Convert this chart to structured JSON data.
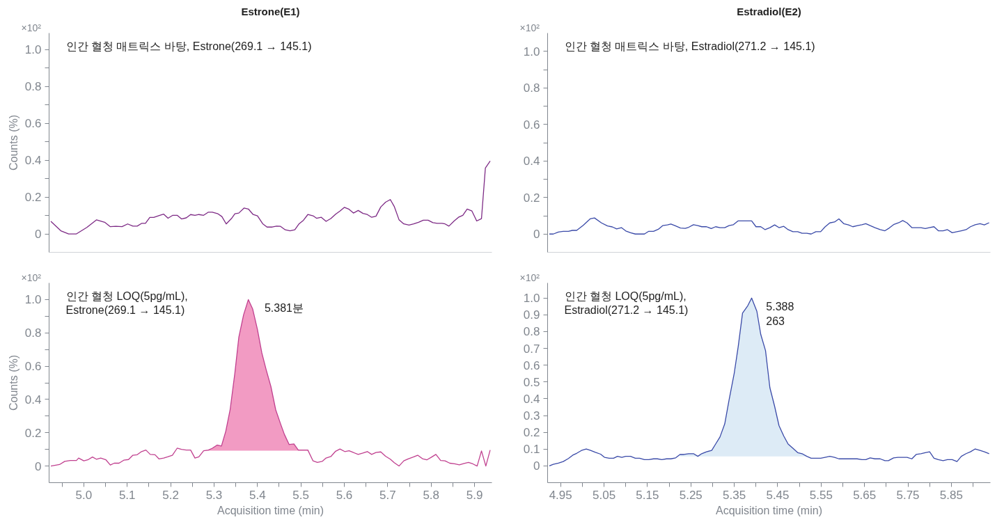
{
  "chart_data": [
    {
      "type": "line",
      "title": "Estrone(E1)",
      "ylabel": "Counts (%)",
      "xlim": [
        4.92,
        5.94
      ],
      "ylim": [
        -0.1,
        1.09
      ],
      "tick_labels": "y",
      "grid": false,
      "yticks": [
        0,
        {
          "value": 0.1,
          "label": null
        },
        0.2,
        {
          "value": 0.3,
          "label": null
        },
        0.4,
        {
          "value": 0.5,
          "label": null
        },
        0.6,
        {
          "value": 0.7,
          "label": null
        },
        0.8,
        {
          "value": 0.9,
          "label": null
        },
        {
          "value": 1.0,
          "label": "1.0"
        }
      ],
      "annotations": [
        "×10²",
        "인간 혈청 매트릭스 바탕, Estrone(269.1 → 145.1)"
      ],
      "series": [
        {
          "color": "#7d2a85",
          "x": [
            4.924,
            4.947,
            4.965,
            4.983,
            5.007,
            5.029,
            5.048,
            5.061,
            5.074,
            5.088,
            5.101,
            5.113,
            5.123,
            5.133,
            5.142,
            5.152,
            5.161,
            5.175,
            5.184,
            5.194,
            5.205,
            5.215,
            5.225,
            5.236,
            5.246,
            5.256,
            5.265,
            5.276,
            5.287,
            5.296,
            5.309,
            5.318,
            5.328,
            5.34,
            5.348,
            5.357,
            5.369,
            5.379,
            5.39,
            5.4,
            5.412,
            5.422,
            5.434,
            5.444,
            5.453,
            5.464,
            5.475,
            5.486,
            5.496,
            5.506,
            5.516,
            5.528,
            5.536,
            5.547,
            5.558,
            5.569,
            5.58,
            5.59,
            5.6,
            5.61,
            5.621,
            5.632,
            5.643,
            5.653,
            5.663,
            5.673,
            5.684,
            5.695,
            5.706,
            5.715,
            5.726,
            5.737,
            5.749,
            5.76,
            5.771,
            5.782,
            5.793,
            5.804,
            5.814,
            5.825,
            5.832,
            5.841,
            5.853,
            5.863,
            5.873,
            5.883,
            5.894,
            5.905,
            5.916,
            5.925,
            5.936
          ],
          "values": [
            0.068,
            0.017,
            0,
            0,
            0.035,
            0.076,
            0.063,
            0.039,
            0.041,
            0.039,
            0.054,
            0.042,
            0.042,
            0.057,
            0.057,
            0.089,
            0.089,
            0.101,
            0.107,
            0.085,
            0.101,
            0.101,
            0.081,
            0.087,
            0.105,
            0.101,
            0.105,
            0.101,
            0.118,
            0.118,
            0.109,
            0.094,
            0.054,
            0.083,
            0.109,
            0.113,
            0.14,
            0.135,
            0.105,
            0.098,
            0.055,
            0.037,
            0.037,
            0.042,
            0.041,
            0.022,
            0.017,
            0.022,
            0.055,
            0.074,
            0.105,
            0.098,
            0.085,
            0.09,
            0.068,
            0.083,
            0.107,
            0.124,
            0.144,
            0.135,
            0.113,
            0.127,
            0.111,
            0.105,
            0.09,
            0.096,
            0.146,
            0.172,
            0.186,
            0.149,
            0.077,
            0.054,
            0.048,
            0.054,
            0.063,
            0.074,
            0.074,
            0.061,
            0.057,
            0.057,
            0.054,
            0.042,
            0.07,
            0.09,
            0.101,
            0.135,
            0.124,
            0.07,
            0.083,
            0.358,
            0.395
          ]
        }
      ]
    },
    {
      "type": "line",
      "title": "Estradiol(E2)",
      "xlim": [
        4.92,
        5.94
      ],
      "ylim": [
        -0.1,
        1.1
      ],
      "tick_labels": "y",
      "grid": false,
      "yticks": [
        0,
        {
          "value": 0.1,
          "label": null
        },
        0.2,
        {
          "value": 0.3,
          "label": null
        },
        0.4,
        {
          "value": 0.5,
          "label": null
        },
        0.6,
        {
          "value": 0.7,
          "label": null
        },
        0.8,
        {
          "value": 0.9,
          "label": null
        },
        {
          "value": 1.0,
          "label": "1.0"
        }
      ],
      "annotations": [
        "×10²",
        "인간 혈청 매트릭스 바탕, Estradiol(271.2 → 145.1)"
      ],
      "series": [
        {
          "color": "#3a4aa8",
          "x": [
            4.924,
            4.933,
            4.945,
            4.956,
            4.968,
            4.977,
            4.987,
            5.002,
            5.018,
            5.028,
            5.044,
            5.058,
            5.069,
            5.079,
            5.09,
            5.1,
            5.111,
            5.122,
            5.132,
            5.143,
            5.153,
            5.164,
            5.175,
            5.185,
            5.196,
            5.204,
            5.215,
            5.226,
            5.237,
            5.245,
            5.256,
            5.266,
            5.275,
            5.286,
            5.297,
            5.307,
            5.317,
            5.328,
            5.338,
            5.348,
            5.359,
            5.371,
            5.381,
            5.39,
            5.4,
            5.411,
            5.421,
            5.432,
            5.443,
            5.453,
            5.464,
            5.474,
            5.485,
            5.496,
            5.506,
            5.517,
            5.527,
            5.538,
            5.549,
            5.559,
            5.57,
            5.581,
            5.591,
            5.602,
            5.613,
            5.623,
            5.634,
            5.644,
            5.653,
            5.663,
            5.674,
            5.686,
            5.697,
            5.707,
            5.718,
            5.729,
            5.738,
            5.748,
            5.759,
            5.769,
            5.78,
            5.79,
            5.799,
            5.81,
            5.82,
            5.831,
            5.841,
            5.852,
            5.863,
            5.873,
            5.884,
            5.894,
            5.905,
            5.916,
            5.926,
            5.937
          ],
          "values": [
            0,
            0,
            0.011,
            0.015,
            0.015,
            0.02,
            0.02,
            0.048,
            0.083,
            0.088,
            0.061,
            0.044,
            0.039,
            0.028,
            0.035,
            0.017,
            0.007,
            0,
            0,
            0,
            0.015,
            0.015,
            0.026,
            0.046,
            0.05,
            0.055,
            0.044,
            0.033,
            0.031,
            0.037,
            0.051,
            0.046,
            0.04,
            0.04,
            0.03,
            0.04,
            0.035,
            0.035,
            0.046,
            0.051,
            0.072,
            0.072,
            0.072,
            0.072,
            0.04,
            0.04,
            0.024,
            0.035,
            0.05,
            0.035,
            0.042,
            0.024,
            0.013,
            0.013,
            0.004,
            0.004,
            0,
            0.013,
            0.013,
            0.039,
            0.061,
            0.066,
            0.083,
            0.057,
            0.05,
            0.04,
            0.046,
            0.051,
            0.057,
            0.046,
            0.035,
            0.024,
            0.018,
            0.033,
            0.053,
            0.062,
            0.074,
            0.061,
            0.035,
            0.035,
            0.035,
            0.03,
            0.035,
            0.04,
            0.018,
            0.018,
            0.024,
            0.007,
            0.013,
            0.018,
            0.024,
            0.04,
            0.051,
            0.057,
            0.05,
            0.062
          ]
        }
      ]
    },
    {
      "type": "line",
      "ylabel": "Counts (%)",
      "xlabel": "Acquisition time (min)",
      "xlim": [
        4.92,
        5.94
      ],
      "ylim": [
        -0.1,
        1.1
      ],
      "grid": false,
      "xticks": [
        {
          "value": 4.95,
          "label": null
        },
        {
          "value": 5.0,
          "label": "5.0"
        },
        {
          "value": 5.05,
          "label": null
        },
        5.1,
        {
          "value": 5.15,
          "label": null
        },
        5.2,
        {
          "value": 5.25,
          "label": null
        },
        5.3,
        {
          "value": 5.35,
          "label": null
        },
        5.4,
        {
          "value": 5.45,
          "label": null
        },
        5.5,
        {
          "value": 5.55,
          "label": null
        },
        5.6,
        {
          "value": 5.65,
          "label": null
        },
        5.7,
        {
          "value": 5.75,
          "label": null
        },
        5.8,
        {
          "value": 5.85,
          "label": null
        },
        5.9
      ],
      "yticks": [
        0,
        {
          "value": 0.1,
          "label": null
        },
        0.2,
        {
          "value": 0.3,
          "label": null
        },
        0.4,
        {
          "value": 0.5,
          "label": null
        },
        0.6,
        {
          "value": 0.7,
          "label": null
        },
        0.8,
        {
          "value": 0.9,
          "label": null
        },
        {
          "value": 1.0,
          "label": "1.0"
        }
      ],
      "annotations": [
        "×10²",
        "인간 혈청 LOQ(5pg/mL),\nEstrone(269.1 → 145.1)",
        {
          "text": "5.381분",
          "x": 5.381,
          "y": 1.0
        }
      ],
      "series": [
        {
          "type": "area",
          "color": "#f29bc3",
          "x": [
            5.276,
            5.287,
            5.296,
            5.307,
            5.317,
            5.327,
            5.337,
            5.348,
            5.357,
            5.368,
            5.379,
            5.389,
            5.4,
            5.41,
            5.42,
            5.431,
            5.442,
            5.453,
            5.462,
            5.473,
            5.484,
            5.494,
            5.506,
            5.516
          ],
          "values": [
            0.092,
            0.096,
            0.107,
            0.126,
            0.12,
            0.209,
            0.338,
            0.56,
            0.773,
            0.908,
            1.0,
            0.943,
            0.819,
            0.68,
            0.579,
            0.477,
            0.338,
            0.255,
            0.19,
            0.129,
            0.133,
            0.096,
            0.096,
            0.096
          ]
        },
        {
          "color": "#c0408f",
          "x": [
            4.924,
            4.944,
            4.956,
            4.969,
            4.983,
            4.988,
            5.0,
            5.009,
            5.02,
            5.029,
            5.039,
            5.051,
            5.061,
            5.07,
            5.081,
            5.092,
            5.103,
            5.113,
            5.123,
            5.133,
            5.143,
            5.153,
            5.164,
            5.173,
            5.184,
            5.193,
            5.204,
            5.215,
            5.225,
            5.236,
            5.246,
            5.256,
            5.265,
            5.276,
            5.287,
            5.296,
            5.307,
            5.317,
            5.327,
            5.337,
            5.348,
            5.357,
            5.368,
            5.379,
            5.389,
            5.4,
            5.41,
            5.42,
            5.431,
            5.442,
            5.453,
            5.462,
            5.473,
            5.484,
            5.494,
            5.506,
            5.516,
            5.528,
            5.538,
            5.549,
            5.558,
            5.569,
            5.58,
            5.59,
            5.601,
            5.611,
            5.621,
            5.632,
            5.643,
            5.653,
            5.663,
            5.673,
            5.684,
            5.695,
            5.706,
            5.715,
            5.726,
            5.737,
            5.747,
            5.759,
            5.769,
            5.78,
            5.79,
            5.8,
            5.811,
            5.822,
            5.832,
            5.843,
            5.854,
            5.865,
            5.876,
            5.886,
            5.896,
            5.906,
            5.916,
            5.926,
            5.936
          ],
          "values": [
            0,
            0.009,
            0.028,
            0.033,
            0.033,
            0.048,
            0.031,
            0.037,
            0.054,
            0.041,
            0.048,
            0.037,
            0.006,
            0.017,
            0.017,
            0.035,
            0.039,
            0.065,
            0.068,
            0.087,
            0.096,
            0.07,
            0.068,
            0.043,
            0.048,
            0.055,
            0.065,
            0.107,
            0.1,
            0.096,
            0.096,
            0.048,
            0.055,
            0.092,
            0.096,
            0.107,
            0.126,
            0.12,
            0.209,
            0.338,
            0.56,
            0.773,
            0.908,
            1.0,
            0.943,
            0.819,
            0.68,
            0.579,
            0.477,
            0.338,
            0.255,
            0.19,
            0.129,
            0.133,
            0.096,
            0.096,
            0.096,
            0.031,
            0.022,
            0.028,
            0.048,
            0.057,
            0.089,
            0.102,
            0.087,
            0.092,
            0.081,
            0.07,
            0.078,
            0.087,
            0.07,
            0.081,
            0.085,
            0.059,
            0.041,
            0.02,
            0,
            0.031,
            0.043,
            0.054,
            0.065,
            0.044,
            0.037,
            0.052,
            0.07,
            0.033,
            0.031,
            0.017,
            0.013,
            0.007,
            0.015,
            0.022,
            0.013,
            0,
            0.091,
            0,
            0.096
          ]
        }
      ]
    },
    {
      "type": "line",
      "xlabel": "Acquisition time (min)",
      "xlim": [
        4.92,
        5.94
      ],
      "ylim": [
        -0.1,
        1.09
      ],
      "grid": false,
      "xticks": [
        4.95,
        {
          "value": 5.0,
          "label": null
        },
        5.05,
        {
          "value": 5.1,
          "label": null
        },
        5.15,
        {
          "value": 5.2,
          "label": null
        },
        5.25,
        {
          "value": 5.3,
          "label": null
        },
        5.35,
        {
          "value": 5.4,
          "label": null
        },
        5.45,
        {
          "value": 5.5,
          "label": null
        },
        5.55,
        {
          "value": 5.6,
          "label": null
        },
        5.65,
        {
          "value": 5.7,
          "label": null
        },
        5.75,
        {
          "value": 5.8,
          "label": null
        },
        5.85,
        {
          "value": 5.9,
          "label": null
        }
      ],
      "yticks": [
        0,
        0.1,
        0.2,
        0.3,
        0.4,
        0.5,
        0.6,
        0.7,
        0.8,
        0.9,
        {
          "value": 1.0,
          "label": "1.0"
        }
      ],
      "annotations": [
        "×10²",
        "인간 혈청 LOQ(5pg/mL),\nEstradiol(271.2 → 145.1)",
        {
          "text": "5.388\n263",
          "x": 5.388,
          "y": 1.0
        }
      ],
      "series": [
        {
          "type": "area",
          "color": "#ddebf6",
          "x": [
            5.225,
            5.234,
            5.245,
            5.256,
            5.266,
            5.275,
            5.286,
            5.298,
            5.307,
            5.317,
            5.328,
            5.338,
            5.35,
            5.359,
            5.369,
            5.381,
            5.39,
            5.402,
            5.411,
            5.422,
            5.432,
            5.443,
            5.453,
            5.464,
            5.474,
            5.485,
            5.496,
            5.506,
            5.517
          ],
          "values": [
            0.068,
            0.068,
            0.073,
            0.073,
            0.057,
            0.073,
            0.084,
            0.092,
            0.13,
            0.172,
            0.25,
            0.393,
            0.554,
            0.71,
            0.91,
            0.954,
            1.0,
            0.921,
            0.783,
            0.686,
            0.466,
            0.354,
            0.24,
            0.178,
            0.13,
            0.105,
            0.079,
            0.073,
            0.057
          ]
        },
        {
          "color": "#3a4aa8",
          "x": [
            4.924,
            4.933,
            4.945,
            4.956,
            4.968,
            4.978,
            4.987,
            4.998,
            5.009,
            5.019,
            5.03,
            5.042,
            5.051,
            5.062,
            5.072,
            5.081,
            5.091,
            5.1,
            5.111,
            5.122,
            5.132,
            5.143,
            5.153,
            5.164,
            5.173,
            5.183,
            5.194,
            5.204,
            5.215,
            5.225,
            5.234,
            5.245,
            5.256,
            5.266,
            5.275,
            5.286,
            5.298,
            5.307,
            5.317,
            5.328,
            5.338,
            5.35,
            5.359,
            5.369,
            5.381,
            5.39,
            5.402,
            5.411,
            5.422,
            5.432,
            5.443,
            5.453,
            5.464,
            5.474,
            5.485,
            5.496,
            5.506,
            5.517,
            5.527,
            5.538,
            5.549,
            5.559,
            5.57,
            5.581,
            5.591,
            5.602,
            5.612,
            5.623,
            5.633,
            5.644,
            5.653,
            5.663,
            5.674,
            5.686,
            5.697,
            5.705,
            5.717,
            5.727,
            5.738,
            5.748,
            5.759,
            5.769,
            5.78,
            5.79,
            5.8,
            5.81,
            5.82,
            5.831,
            5.841,
            5.852,
            5.863,
            5.873,
            5.884,
            5.894,
            5.905,
            5.916,
            5.926,
            5.937
          ],
          "values": [
            0,
            0.009,
            0.017,
            0.026,
            0.044,
            0.064,
            0.075,
            0.092,
            0.101,
            0.092,
            0.081,
            0.07,
            0.051,
            0.046,
            0.046,
            0.057,
            0.051,
            0.057,
            0.057,
            0.046,
            0.046,
            0.037,
            0.037,
            0.042,
            0.042,
            0.037,
            0.042,
            0.042,
            0.048,
            0.068,
            0.068,
            0.073,
            0.073,
            0.057,
            0.073,
            0.084,
            0.092,
            0.13,
            0.172,
            0.25,
            0.393,
            0.554,
            0.71,
            0.91,
            0.954,
            1.0,
            0.921,
            0.783,
            0.686,
            0.466,
            0.354,
            0.24,
            0.178,
            0.13,
            0.105,
            0.079,
            0.073,
            0.057,
            0.046,
            0.046,
            0.046,
            0.051,
            0.057,
            0.051,
            0.042,
            0.042,
            0.042,
            0.042,
            0.042,
            0.037,
            0.037,
            0.048,
            0.042,
            0.042,
            0.031,
            0.031,
            0.048,
            0.051,
            0.051,
            0.051,
            0.042,
            0.068,
            0.073,
            0.079,
            0.084,
            0.046,
            0.037,
            0.031,
            0.037,
            0.037,
            0.026,
            0.057,
            0.073,
            0.084,
            0.101,
            0.092,
            0.084,
            0.073
          ]
        }
      ]
    }
  ]
}
